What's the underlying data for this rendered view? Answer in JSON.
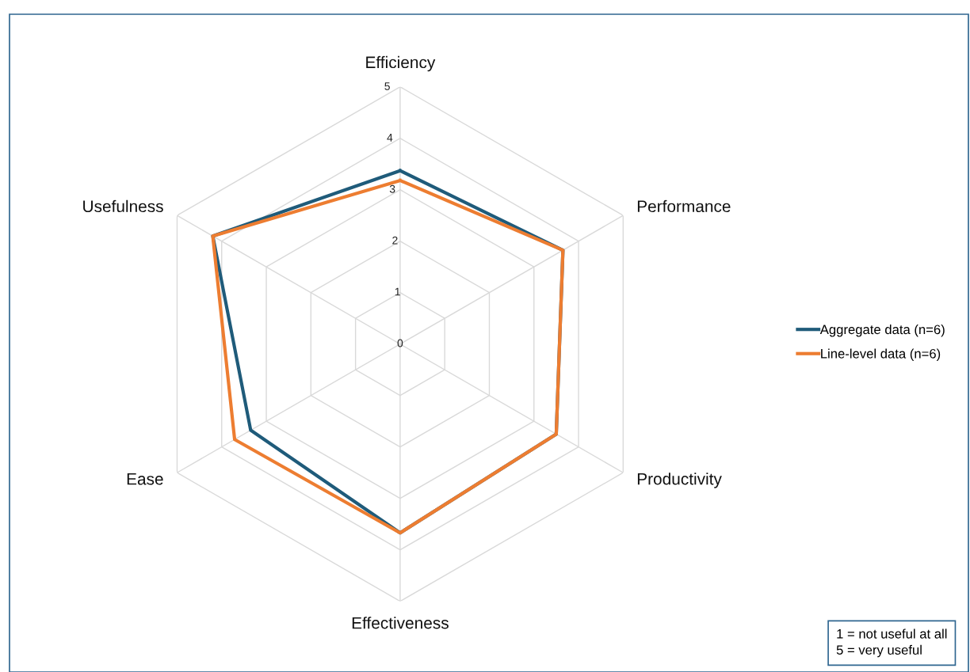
{
  "chart_data": {
    "type": "radar",
    "categories": [
      "Efficiency",
      "Performance",
      "Productivity",
      "Effectiveness",
      "Ease",
      "Usefulness"
    ],
    "series": [
      {
        "name": "Aggregate data (n=6)",
        "color": "#1f5b7a",
        "values": [
          3.37,
          3.65,
          3.5,
          3.67,
          3.35,
          4.2
        ]
      },
      {
        "name": "Line-level data (n=6)",
        "color": "#ed7d31",
        "values": [
          3.18,
          3.65,
          3.5,
          3.67,
          3.71,
          4.2
        ]
      }
    ],
    "ylim": [
      0,
      5
    ],
    "yticks": [
      0,
      1,
      2,
      3,
      4,
      5
    ],
    "grid": true,
    "legend": "right",
    "annotations": [
      "1 = not useful at all\n5 = very useful"
    ]
  }
}
